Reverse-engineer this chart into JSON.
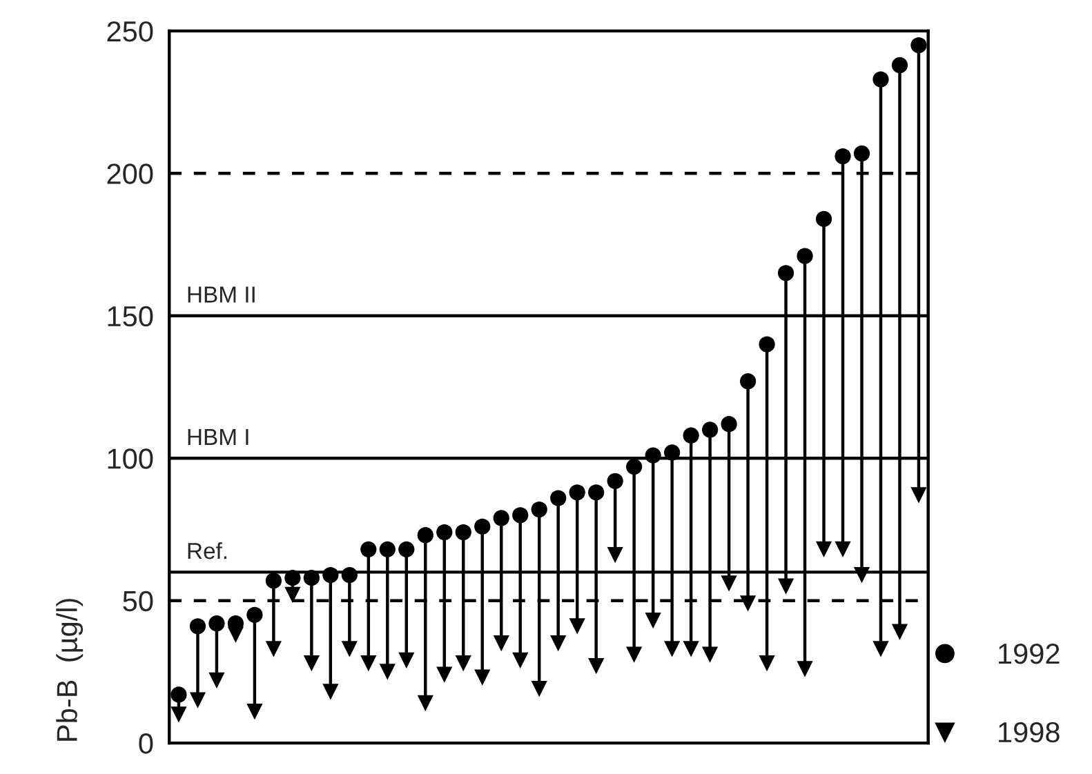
{
  "chart_data": {
    "type": "scatter",
    "ylabel": "Pb-B  (µg/l)",
    "categories": [
      null,
      null,
      null,
      null,
      null,
      null,
      null,
      null,
      null,
      null,
      null,
      null,
      null,
      null,
      null,
      null,
      null,
      null,
      null,
      null,
      null,
      null,
      null,
      null,
      null,
      null,
      null,
      null,
      null,
      null,
      null,
      null,
      null,
      null,
      null,
      null,
      null,
      null,
      null,
      null
    ],
    "series": [
      {
        "name": "1992",
        "color": "#000000",
        "marker": "circle",
        "values": [
          17,
          41,
          42,
          42,
          45,
          57,
          58,
          58,
          59,
          59,
          68,
          68,
          68,
          73,
          74,
          74,
          76,
          79,
          80,
          82,
          86,
          88,
          88,
          92,
          97,
          101,
          102,
          108,
          110,
          112,
          127,
          140,
          165,
          171,
          184,
          206,
          207,
          233,
          238,
          245
        ]
      },
      {
        "name": "1998",
        "color": "#000000",
        "marker": "triangle",
        "values": [
          10,
          15,
          22,
          38,
          11,
          33,
          52,
          28,
          18,
          33,
          28,
          25,
          29,
          14,
          24,
          28,
          23,
          35,
          29,
          19,
          35,
          41,
          27,
          66,
          31,
          43,
          33,
          33,
          31,
          56,
          49,
          28,
          55,
          26,
          68,
          68,
          59,
          33,
          39,
          87
        ]
      }
    ],
    "ylim": [
      0,
      250
    ],
    "yticks": [
      0,
      50,
      100,
      150,
      200,
      250
    ],
    "ref_lines": [
      {
        "axis": "y",
        "value": 200,
        "label": null,
        "color": "#000000",
        "line_style": "dashed"
      },
      {
        "axis": "y",
        "value": 150,
        "label": "HBM II",
        "color": "#000000",
        "line_style": "solid"
      },
      {
        "axis": "y",
        "value": 100,
        "label": "HBM I",
        "color": "#000000",
        "line_style": "solid"
      },
      {
        "axis": "y",
        "value": 60,
        "label": "Ref.",
        "color": "#000000",
        "line_style": "solid"
      },
      {
        "axis": "y",
        "value": 50,
        "label": null,
        "color": "#000000",
        "line_style": "dashed"
      }
    ],
    "grid": false,
    "legend": "bottom right",
    "tick_labels": "y"
  }
}
